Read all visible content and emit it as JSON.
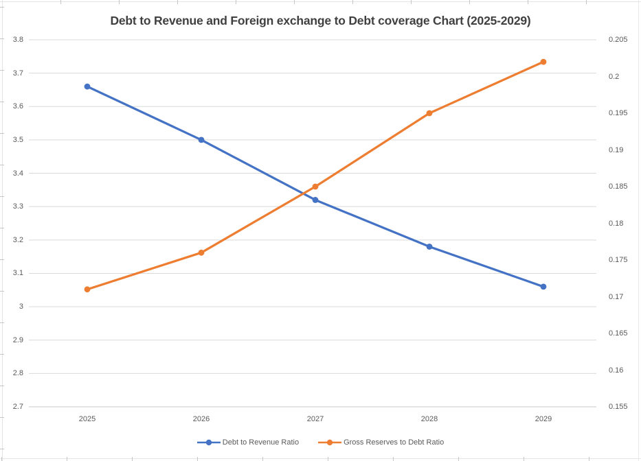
{
  "chart_data": {
    "type": "line",
    "title": "Debt to Revenue and Foreign exchange to Debt coverage Chart (2025-2029)",
    "categories": [
      "2025",
      "2026",
      "2027",
      "2028",
      "2029"
    ],
    "series": [
      {
        "name": "Debt to Revenue Ratio",
        "axis": "left",
        "color": "#4472C4",
        "marker": "circle",
        "values": [
          3.66,
          3.5,
          3.32,
          3.18,
          3.06
        ]
      },
      {
        "name": "Gross Reserves to Debt Ratio",
        "axis": "right",
        "color": "#ED7D31",
        "marker": "circle",
        "values": [
          0.171,
          0.176,
          0.185,
          0.195,
          0.202
        ]
      }
    ],
    "left_axis": {
      "min": 2.7,
      "max": 3.8,
      "step": 0.1,
      "ticks": [
        "3.8",
        "3.7",
        "3.6",
        "3.5",
        "3.4",
        "3.3",
        "3.2",
        "3.1",
        "3",
        "2.9",
        "2.8",
        "2.7"
      ]
    },
    "right_axis": {
      "min": 0.155,
      "max": 0.205,
      "step": 0.005,
      "ticks": [
        "0.205",
        "0.2",
        "0.195",
        "0.19",
        "0.185",
        "0.18",
        "0.175",
        "0.17",
        "0.165",
        "0.16",
        "0.155"
      ]
    },
    "grid": true,
    "legend_position": "bottom"
  },
  "colors": {
    "gridline": "#D9D9D9",
    "axis_line": "#C9C9C9",
    "axis_text": "#595959",
    "title_text": "#404040"
  }
}
